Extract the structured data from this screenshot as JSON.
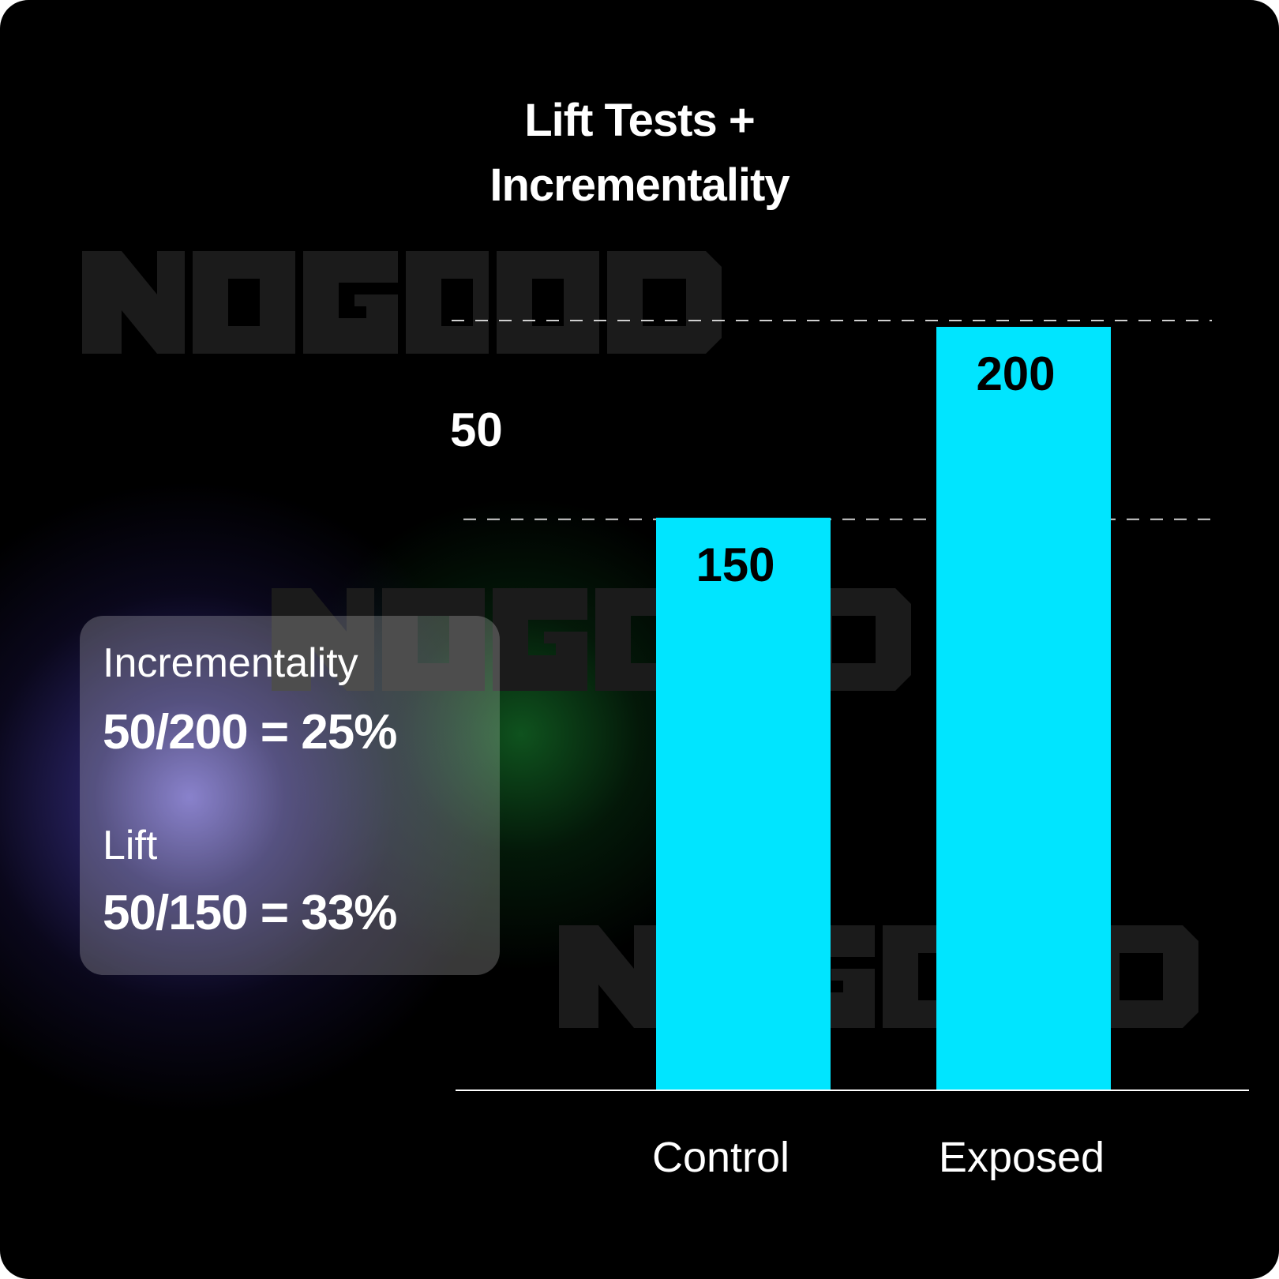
{
  "chart_data": {
    "type": "bar",
    "title": "Lift Tests + Incrementality",
    "title_lines": [
      "Lift Tests +",
      "Incrementality"
    ],
    "categories": [
      "Control",
      "Exposed"
    ],
    "values": [
      150,
      200
    ],
    "data_labels": [
      "150",
      "200"
    ],
    "difference_label": "50",
    "reference_lines": [
      150,
      200
    ],
    "grid": false,
    "xlabel": "",
    "ylabel": "",
    "bar_color": "#00E5FF"
  },
  "panel": {
    "incrementality_label": "Incrementality",
    "incrementality_formula": "50/200 = 25%",
    "lift_label": "Lift",
    "lift_formula": "50/150 = 33%"
  },
  "colors": {
    "background": "#000000",
    "bar": "#00E5FF",
    "text": "#FFFFFF",
    "watermark": "#1B1B1B"
  },
  "watermark": "NOGOOD"
}
